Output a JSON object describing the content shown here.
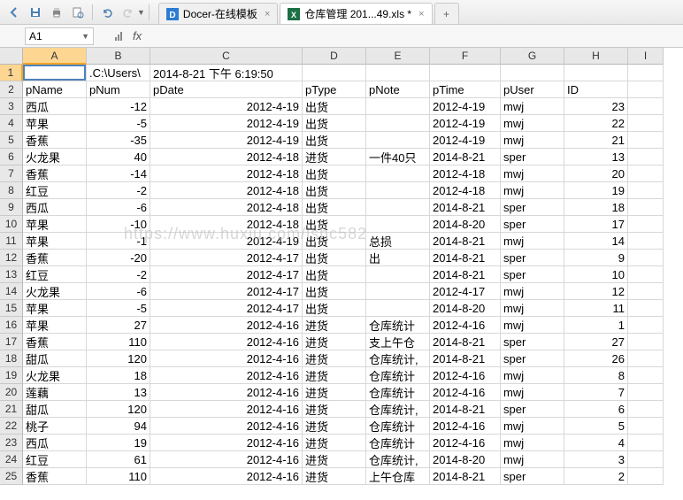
{
  "toolbar": {
    "icons": [
      "back-icon",
      "save-icon",
      "print-icon",
      "print-preview-icon",
      "undo-icon",
      "redo-icon"
    ]
  },
  "tabs": [
    {
      "icon": "docer",
      "label": "Docer-在线模板",
      "active": false
    },
    {
      "icon": "xls",
      "label": "仓库管理 201...49.xls *",
      "active": true
    }
  ],
  "namebox": {
    "ref": "A1"
  },
  "columns": [
    {
      "letter": "A",
      "w": 72,
      "sel": true
    },
    {
      "letter": "B",
      "w": 72
    },
    {
      "letter": "C",
      "w": 172
    },
    {
      "letter": "D",
      "w": 72
    },
    {
      "letter": "E",
      "w": 72
    },
    {
      "letter": "F",
      "w": 80
    },
    {
      "letter": "G",
      "w": 72
    },
    {
      "letter": "H",
      "w": 72
    },
    {
      "letter": "I",
      "w": 40
    }
  ],
  "headerRow": [
    "pName",
    "pNum",
    "pDate",
    "pType",
    "pNote",
    "pTime",
    "pUser",
    "ID",
    ""
  ],
  "topRow": [
    "",
    ".C:\\Users\\",
    "2014-8-21 下午 6:19:50",
    "",
    "",
    "",
    "",
    "",
    ""
  ],
  "data": [
    [
      "西瓜",
      "-12",
      "2012-4-19",
      "出货",
      "",
      "2012-4-19",
      "mwj",
      "23"
    ],
    [
      "苹果",
      "-5",
      "2012-4-19",
      "出货",
      "",
      "2012-4-19",
      "mwj",
      "22"
    ],
    [
      "香蕉",
      "-35",
      "2012-4-19",
      "出货",
      "",
      "2012-4-19",
      "mwj",
      "21"
    ],
    [
      "火龙果",
      "40",
      "2012-4-18",
      "进货",
      "一件40只",
      "2014-8-21",
      "sper",
      "13"
    ],
    [
      "香蕉",
      "-14",
      "2012-4-18",
      "出货",
      "",
      "2012-4-18",
      "mwj",
      "20"
    ],
    [
      "红豆",
      "-2",
      "2012-4-18",
      "出货",
      "",
      "2012-4-18",
      "mwj",
      "19"
    ],
    [
      "西瓜",
      "-6",
      "2012-4-18",
      "出货",
      "",
      "2014-8-21",
      "sper",
      "18"
    ],
    [
      "苹果",
      "-10",
      "2012-4-18",
      "出货",
      "",
      "2014-8-20",
      "sper",
      "17"
    ],
    [
      "苹果",
      "-1",
      "2012-4-19",
      "出货",
      "总损",
      "2014-8-21",
      "mwj",
      "14"
    ],
    [
      "香蕉",
      "-20",
      "2012-4-17",
      "出货",
      "出",
      "2014-8-21",
      "sper",
      "9"
    ],
    [
      "红豆",
      "-2",
      "2012-4-17",
      "出货",
      "",
      "2014-8-21",
      "sper",
      "10"
    ],
    [
      "火龙果",
      "-6",
      "2012-4-17",
      "出货",
      "",
      "2012-4-17",
      "mwj",
      "12"
    ],
    [
      "苹果",
      "-5",
      "2012-4-17",
      "出货",
      "",
      "2014-8-20",
      "mwj",
      "11"
    ],
    [
      "苹果",
      "27",
      "2012-4-16",
      "进货",
      "仓库统计",
      "2012-4-16",
      "mwj",
      "1"
    ],
    [
      "香蕉",
      "110",
      "2012-4-16",
      "进货",
      "支上午仓",
      "2014-8-21",
      "sper",
      "27"
    ],
    [
      "甜瓜",
      "120",
      "2012-4-16",
      "进货",
      "仓库统计,",
      "2014-8-21",
      "sper",
      "26"
    ],
    [
      "火龙果",
      "18",
      "2012-4-16",
      "进货",
      "仓库统计",
      "2012-4-16",
      "mwj",
      "8"
    ],
    [
      "莲藕",
      "13",
      "2012-4-16",
      "进货",
      "仓库统计",
      "2012-4-16",
      "mwj",
      "7"
    ],
    [
      "甜瓜",
      "120",
      "2012-4-16",
      "进货",
      "仓库统计,",
      "2014-8-21",
      "sper",
      "6"
    ],
    [
      "桃子",
      "94",
      "2012-4-16",
      "进货",
      "仓库统计",
      "2012-4-16",
      "mwj",
      "5"
    ],
    [
      "西瓜",
      "19",
      "2012-4-16",
      "进货",
      "仓库统计",
      "2012-4-16",
      "mwj",
      "4"
    ],
    [
      "红豆",
      "61",
      "2012-4-16",
      "进货",
      "仓库统计,",
      "2014-8-20",
      "mwj",
      "3"
    ],
    [
      "香蕉",
      "110",
      "2012-4-16",
      "进货",
      "上午仓库",
      "2014-8-21",
      "sper",
      "2"
    ]
  ],
  "watermark": "https://www.huxiu.com/ishc582",
  "rightAlignCols": [
    1,
    2,
    7
  ]
}
